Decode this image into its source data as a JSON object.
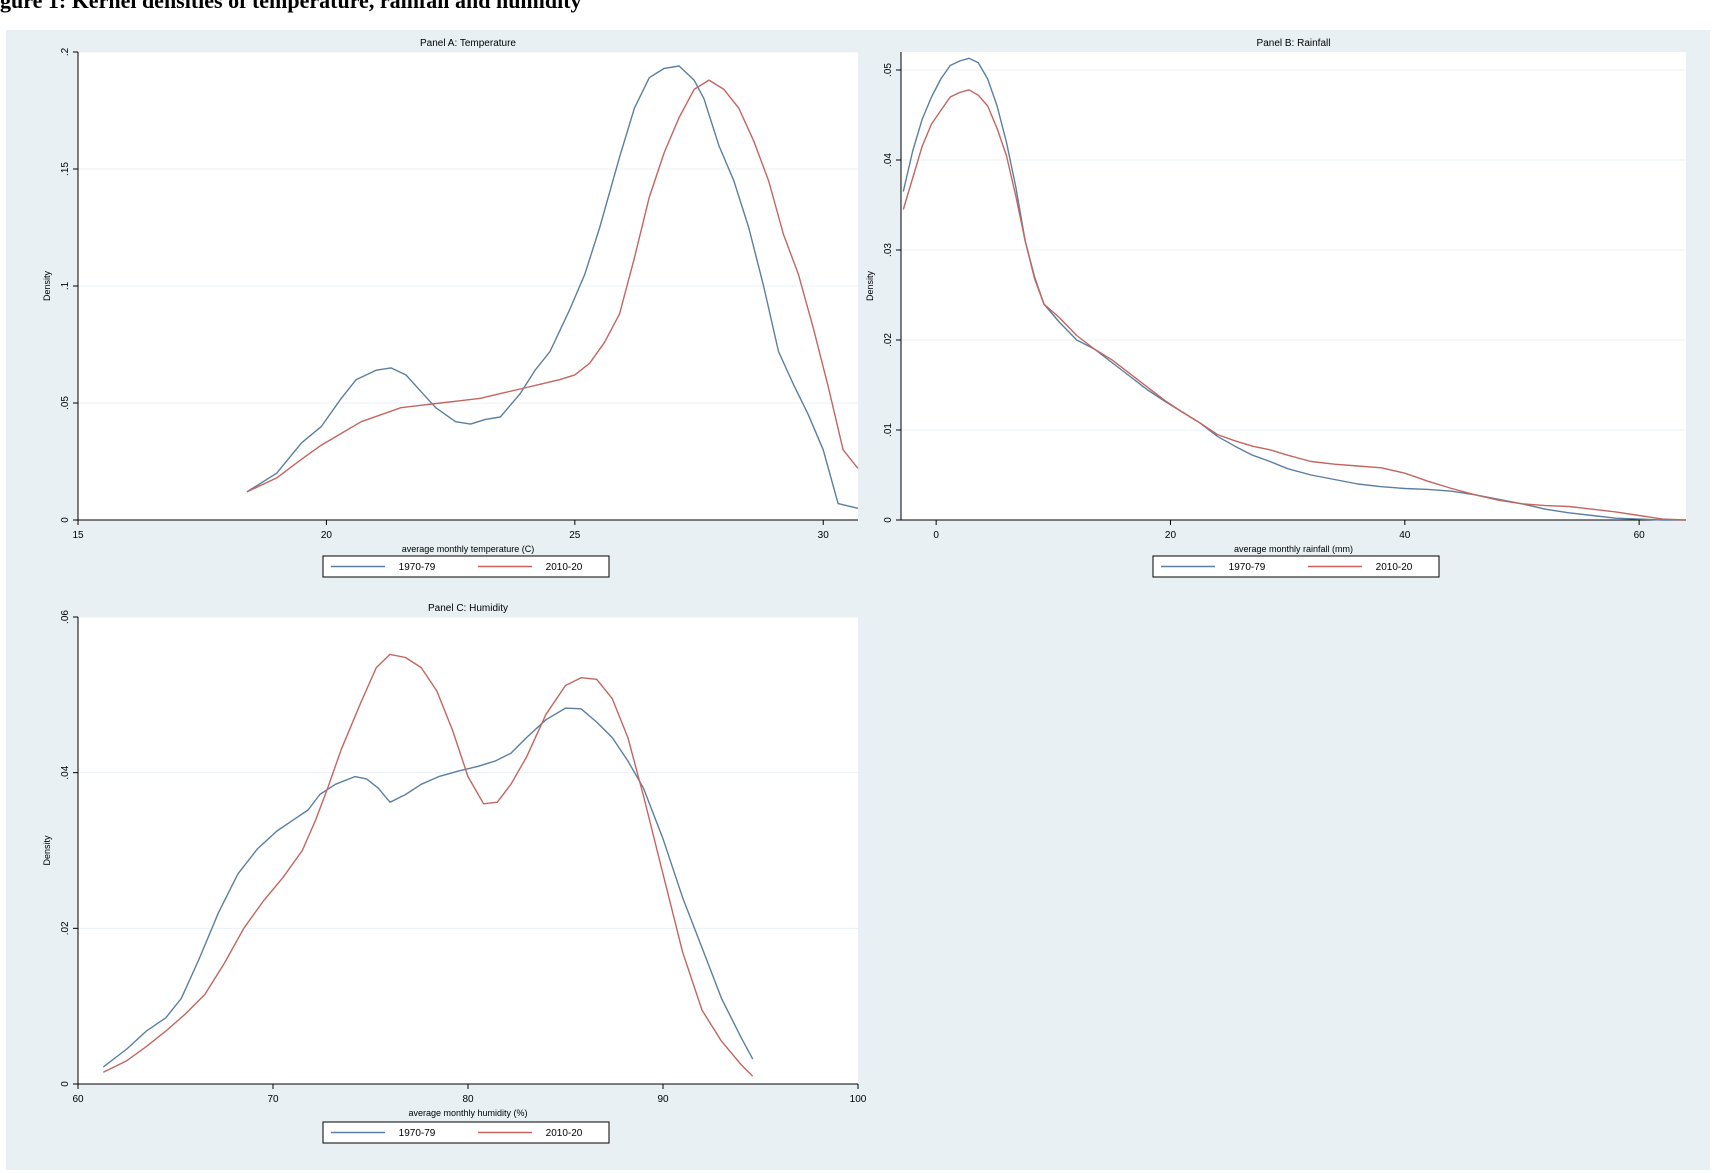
{
  "figure_title": "gure 1: Kernel densities of temperature, rainfall and humidity",
  "colors": {
    "background": "#e8f0f3",
    "plot_bg": "#ffffff",
    "grid": "#eaf1f4",
    "series_1": "#5a7fa0",
    "series_2": "#c46560"
  },
  "chart_data": [
    {
      "type": "line",
      "title": "Panel A: Temperature",
      "xlabel": "average monthly temperature (C)",
      "ylabel": "Density",
      "xlim": [
        15,
        30.7
      ],
      "ylim": [
        0,
        0.2
      ],
      "xticks": [
        15,
        20,
        25,
        30
      ],
      "xtick_labels": [
        "15",
        "20",
        "25",
        "30"
      ],
      "yticks": [
        0,
        0.05,
        0.1,
        0.15,
        0.2
      ],
      "ytick_labels": [
        "0",
        ".05",
        ".1",
        ".15",
        ".2"
      ],
      "grid": true,
      "legend_position": "bottom",
      "series": [
        {
          "name": "1970-79",
          "color": "#5a7fa0",
          "x": [
            18.4,
            19.0,
            19.5,
            19.9,
            20.3,
            20.6,
            21.0,
            21.3,
            21.6,
            21.9,
            22.2,
            22.6,
            22.9,
            23.2,
            23.5,
            23.9,
            24.2,
            24.5,
            24.9,
            25.2,
            25.5,
            25.9,
            26.2,
            26.5,
            26.8,
            27.1,
            27.4,
            27.6,
            27.9,
            28.2,
            28.5,
            28.8,
            29.1,
            29.4,
            29.7,
            30.0,
            30.3,
            30.7
          ],
          "y": [
            0.012,
            0.02,
            0.033,
            0.04,
            0.052,
            0.06,
            0.064,
            0.065,
            0.062,
            0.055,
            0.048,
            0.042,
            0.041,
            0.043,
            0.044,
            0.054,
            0.064,
            0.072,
            0.09,
            0.105,
            0.125,
            0.155,
            0.176,
            0.189,
            0.193,
            0.194,
            0.188,
            0.18,
            0.16,
            0.145,
            0.125,
            0.1,
            0.072,
            0.058,
            0.045,
            0.03,
            0.007,
            0.005
          ]
        },
        {
          "name": "2010-20",
          "color": "#c46560",
          "x": [
            18.4,
            19.0,
            19.5,
            19.9,
            20.3,
            20.7,
            21.1,
            21.5,
            21.9,
            22.3,
            22.7,
            23.1,
            23.5,
            23.9,
            24.3,
            24.7,
            25.0,
            25.3,
            25.6,
            25.9,
            26.2,
            26.5,
            26.8,
            27.1,
            27.4,
            27.7,
            28.0,
            28.3,
            28.6,
            28.9,
            29.2,
            29.5,
            29.8,
            30.1,
            30.4,
            30.7
          ],
          "y": [
            0.012,
            0.018,
            0.026,
            0.032,
            0.037,
            0.042,
            0.045,
            0.048,
            0.049,
            0.05,
            0.051,
            0.052,
            0.054,
            0.056,
            0.058,
            0.06,
            0.062,
            0.067,
            0.076,
            0.088,
            0.112,
            0.138,
            0.157,
            0.172,
            0.184,
            0.188,
            0.184,
            0.176,
            0.162,
            0.145,
            0.122,
            0.105,
            0.082,
            0.057,
            0.03,
            0.022
          ]
        }
      ]
    },
    {
      "type": "line",
      "title": "Panel B: Rainfall",
      "xlabel": "average monthly rainfall (mm)",
      "ylabel": "Density",
      "xlim": [
        -3,
        64
      ],
      "ylim": [
        0,
        0.052
      ],
      "xticks": [
        0,
        20,
        40,
        60
      ],
      "xtick_labels": [
        "0",
        "20",
        "40",
        "60"
      ],
      "yticks": [
        0,
        0.01,
        0.02,
        0.03,
        0.04,
        0.05
      ],
      "ytick_labels": [
        "0",
        ".01",
        ".02",
        ".03",
        ".04",
        ".05"
      ],
      "grid": true,
      "legend_position": "bottom",
      "series": [
        {
          "name": "1970-79",
          "color": "#5a7fa0",
          "x": [
            -2.8,
            -2.0,
            -1.2,
            -0.4,
            0.4,
            1.2,
            2.0,
            2.8,
            3.6,
            4.4,
            5.2,
            6.0,
            6.8,
            7.6,
            8.4,
            9.2,
            10.5,
            12.0,
            13.5,
            15.0,
            16.5,
            18.0,
            19.5,
            21.0,
            22.5,
            24.0,
            25.5,
            27.0,
            28.5,
            30.0,
            32.0,
            34.0,
            36.0,
            38.0,
            40.0,
            42.0,
            44.0,
            46.0,
            48.0,
            50.0,
            52.0,
            54.0,
            56.0,
            58.0,
            60.0,
            62.0,
            64.0
          ],
          "y": [
            0.0365,
            0.041,
            0.0445,
            0.047,
            0.049,
            0.0505,
            0.051,
            0.0513,
            0.0508,
            0.049,
            0.046,
            0.042,
            0.037,
            0.031,
            0.027,
            0.024,
            0.022,
            0.02,
            0.019,
            0.0175,
            0.016,
            0.0145,
            0.0132,
            0.012,
            0.0108,
            0.0093,
            0.0082,
            0.0072,
            0.0065,
            0.0057,
            0.005,
            0.0045,
            0.004,
            0.0037,
            0.0035,
            0.0034,
            0.0032,
            0.0028,
            0.0023,
            0.0018,
            0.0012,
            0.0008,
            0.0005,
            0.0002,
            0.0001,
            0.0,
            0.0
          ]
        },
        {
          "name": "2010-20",
          "color": "#c46560",
          "x": [
            -2.8,
            -2.0,
            -1.2,
            -0.4,
            0.4,
            1.2,
            2.0,
            2.8,
            3.6,
            4.4,
            5.2,
            6.0,
            6.8,
            7.6,
            8.4,
            9.2,
            10.5,
            12.0,
            13.5,
            15.0,
            16.5,
            18.0,
            19.5,
            21.0,
            22.5,
            24.0,
            25.5,
            27.0,
            28.5,
            30.0,
            32.0,
            34.0,
            36.0,
            38.0,
            40.0,
            42.0,
            44.0,
            46.0,
            48.0,
            50.0,
            52.0,
            54.0,
            56.0,
            58.0,
            60.0,
            62.0,
            64.0
          ],
          "y": [
            0.0345,
            0.038,
            0.0415,
            0.044,
            0.0455,
            0.047,
            0.0475,
            0.0478,
            0.0472,
            0.046,
            0.0435,
            0.0405,
            0.036,
            0.031,
            0.0268,
            0.024,
            0.0225,
            0.0205,
            0.019,
            0.0178,
            0.0163,
            0.0148,
            0.0133,
            0.012,
            0.0108,
            0.0095,
            0.0088,
            0.0082,
            0.0078,
            0.0072,
            0.0065,
            0.0062,
            0.006,
            0.0058,
            0.0052,
            0.0043,
            0.0035,
            0.0028,
            0.0022,
            0.0018,
            0.0016,
            0.0015,
            0.0012,
            0.0009,
            0.0005,
            0.0001,
            0.0
          ]
        }
      ]
    },
    {
      "type": "line",
      "title": "Panel C: Humidity",
      "xlabel": "average monthly humidity (%)",
      "ylabel": "Density",
      "xlim": [
        60,
        100
      ],
      "ylim": [
        0,
        0.06
      ],
      "xticks": [
        60,
        70,
        80,
        90,
        100
      ],
      "xtick_labels": [
        "60",
        "70",
        "80",
        "90",
        "100"
      ],
      "yticks": [
        0,
        0.02,
        0.04,
        0.06
      ],
      "ytick_labels": [
        "0",
        ".02",
        ".04",
        ".06"
      ],
      "grid": true,
      "legend_position": "bottom",
      "series": [
        {
          "name": "1970-79",
          "color": "#5a7fa0",
          "x": [
            61.3,
            62.5,
            63.5,
            64.5,
            65.3,
            66.2,
            67.2,
            68.2,
            69.2,
            70.2,
            71.2,
            71.8,
            72.4,
            73.2,
            74.2,
            74.8,
            75.4,
            76.0,
            76.8,
            77.6,
            78.5,
            79.5,
            80.5,
            81.4,
            82.2,
            83.0,
            84.0,
            85.0,
            85.8,
            86.6,
            87.4,
            88.2,
            89.0,
            90.0,
            91.0,
            92.0,
            93.0,
            94.0,
            94.6
          ],
          "y": [
            0.0022,
            0.0045,
            0.0068,
            0.0085,
            0.011,
            0.016,
            0.022,
            0.027,
            0.0302,
            0.0325,
            0.0342,
            0.0352,
            0.0372,
            0.0385,
            0.0395,
            0.0392,
            0.038,
            0.0362,
            0.0372,
            0.0385,
            0.0395,
            0.0402,
            0.0408,
            0.0415,
            0.0425,
            0.0445,
            0.0468,
            0.0483,
            0.0482,
            0.0465,
            0.0445,
            0.0415,
            0.038,
            0.0315,
            0.024,
            0.0175,
            0.011,
            0.006,
            0.0032
          ]
        },
        {
          "name": "2010-20",
          "color": "#c46560",
          "x": [
            61.3,
            62.5,
            63.5,
            64.5,
            65.5,
            66.5,
            67.5,
            68.5,
            69.5,
            70.5,
            71.5,
            72.2,
            72.8,
            73.5,
            74.5,
            75.3,
            76.0,
            76.8,
            77.6,
            78.4,
            79.2,
            80.0,
            80.8,
            81.5,
            82.2,
            83.0,
            84.0,
            85.0,
            85.8,
            86.6,
            87.4,
            88.2,
            89.0,
            90.0,
            91.0,
            92.0,
            93.0,
            94.0,
            94.6
          ],
          "y": [
            0.0015,
            0.003,
            0.0048,
            0.0068,
            0.009,
            0.0115,
            0.0155,
            0.02,
            0.0235,
            0.0265,
            0.03,
            0.034,
            0.038,
            0.043,
            0.049,
            0.0535,
            0.0552,
            0.0548,
            0.0535,
            0.0505,
            0.0455,
            0.0395,
            0.036,
            0.0362,
            0.0385,
            0.042,
            0.0475,
            0.0512,
            0.0522,
            0.052,
            0.0495,
            0.0445,
            0.037,
            0.027,
            0.017,
            0.0095,
            0.0055,
            0.0025,
            0.001
          ]
        }
      ]
    }
  ]
}
